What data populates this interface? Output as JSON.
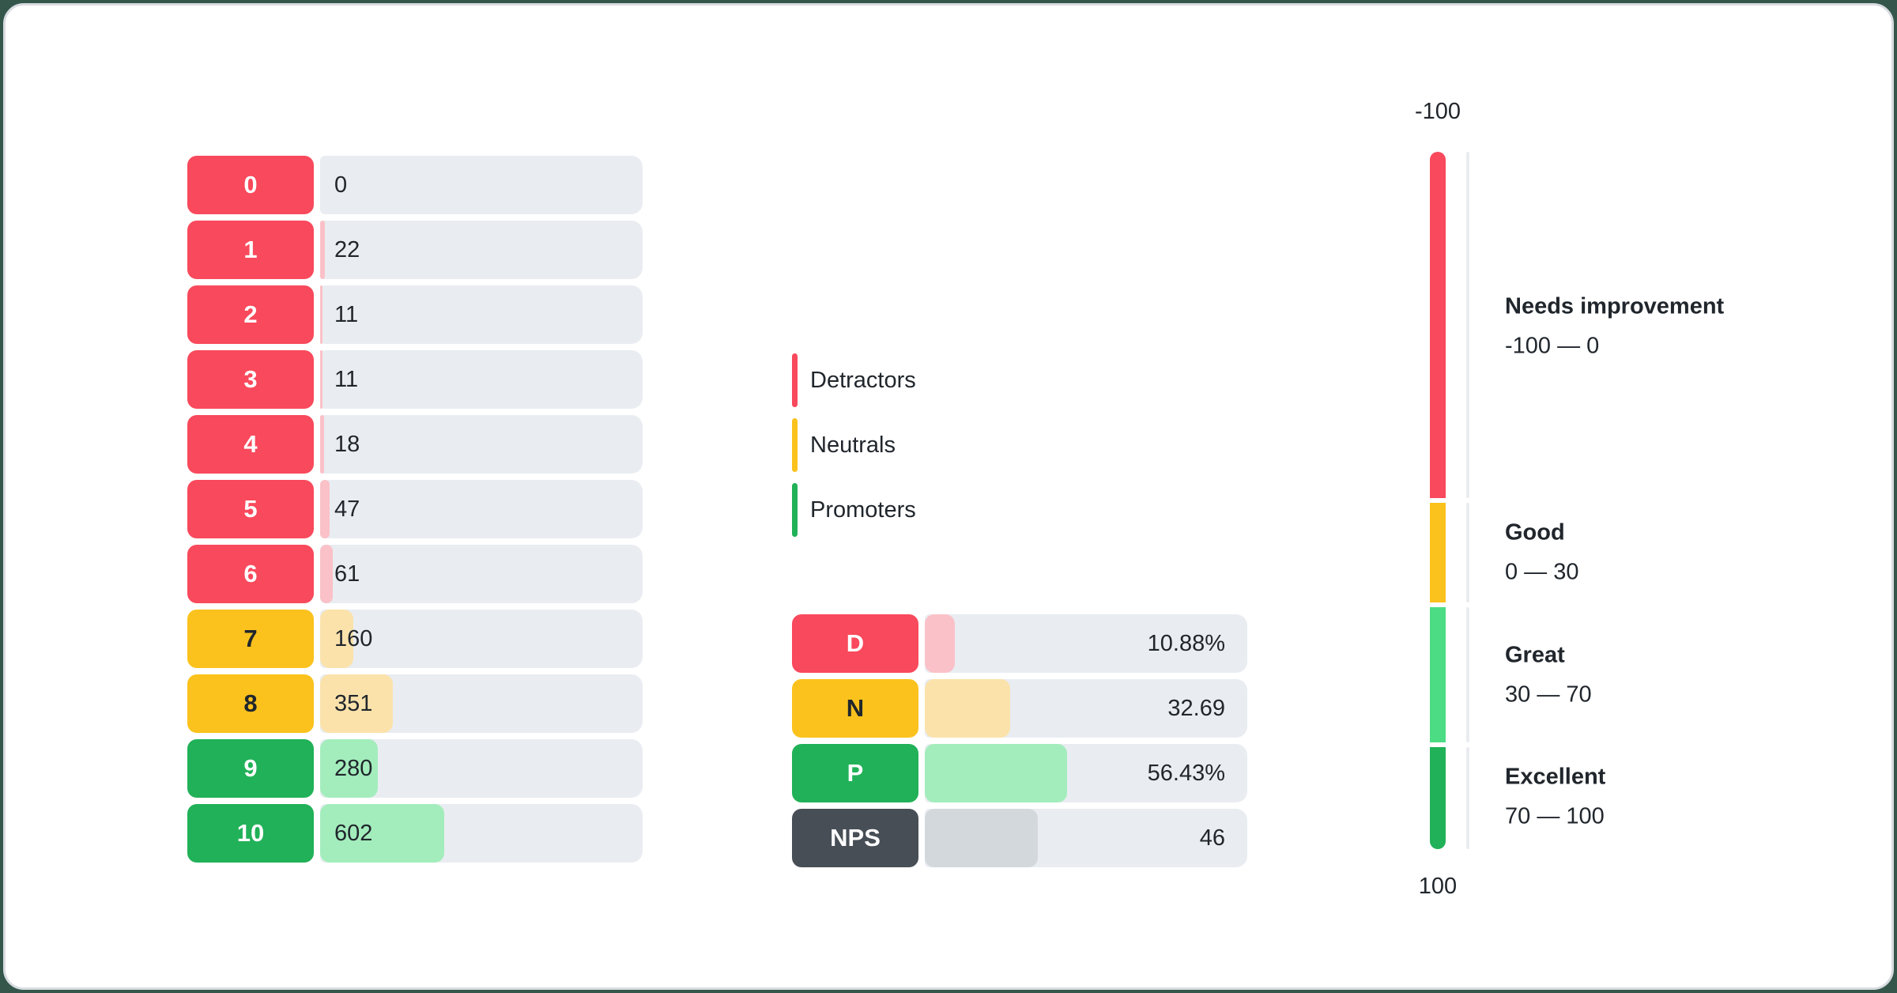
{
  "colors": {
    "detractor": "#F9495C",
    "detractor_light": "#FBC1C8",
    "neutral": "#FBC21D",
    "neutral_light": "#FBE2AB",
    "promoter": "#21B158",
    "promoter_light": "#A3EDBC",
    "great": "#4CDC83",
    "nps": "#474E56",
    "nps_light": "#D3D8DC",
    "bar_track": "#E9EDF1",
    "gauge_track": "#EAECEF",
    "text": "#20262C",
    "card_background": "#FFFFFF",
    "card_border": "#D8DCE1"
  },
  "chart_data": [
    {
      "id": "distribution",
      "type": "bar",
      "orientation": "horizontal-rows",
      "categories": [
        "0",
        "1",
        "2",
        "3",
        "4",
        "5",
        "6",
        "7",
        "8",
        "9",
        "10"
      ],
      "values": [
        0,
        22,
        11,
        11,
        18,
        47,
        61,
        160,
        351,
        280,
        602
      ],
      "groups": [
        "detractor",
        "detractor",
        "detractor",
        "detractor",
        "detractor",
        "detractor",
        "detractor",
        "neutral",
        "neutral",
        "promoter",
        "promoter"
      ]
    },
    {
      "id": "summary",
      "type": "bar",
      "orientation": "horizontal-rows",
      "categories": [
        "D",
        "N",
        "P",
        "NPS"
      ],
      "values": [
        10.88,
        32.69,
        56.43,
        46
      ],
      "value_labels": [
        "10.88%",
        "32.69",
        "56.43%",
        "46"
      ],
      "fill_pct": [
        9.2,
        26.5,
        44,
        35
      ],
      "groups": [
        "detractor",
        "neutral",
        "promoter",
        "nps"
      ]
    },
    {
      "id": "gauge",
      "type": "gauge",
      "min": -100,
      "max": 100,
      "tick_top": "-100",
      "tick_bottom": "100",
      "segments": [
        {
          "label": "Needs improvement",
          "range_label": "-100 — 0",
          "from": -100,
          "to": 0,
          "color_key": "detractor"
        },
        {
          "label": "Good",
          "range_label": "0 — 30",
          "from": 0,
          "to": 30,
          "color_key": "neutral"
        },
        {
          "label": "Great",
          "range_label": "30 — 70",
          "from": 30,
          "to": 70,
          "color_key": "great"
        },
        {
          "label": "Excellent",
          "range_label": "70 — 100",
          "from": 70,
          "to": 100,
          "color_key": "promoter"
        }
      ]
    }
  ],
  "legend": {
    "items": [
      {
        "label": "Detractors",
        "color_key": "detractor"
      },
      {
        "label": "Neutrals",
        "color_key": "neutral"
      },
      {
        "label": "Promoters",
        "color_key": "promoter"
      }
    ]
  }
}
